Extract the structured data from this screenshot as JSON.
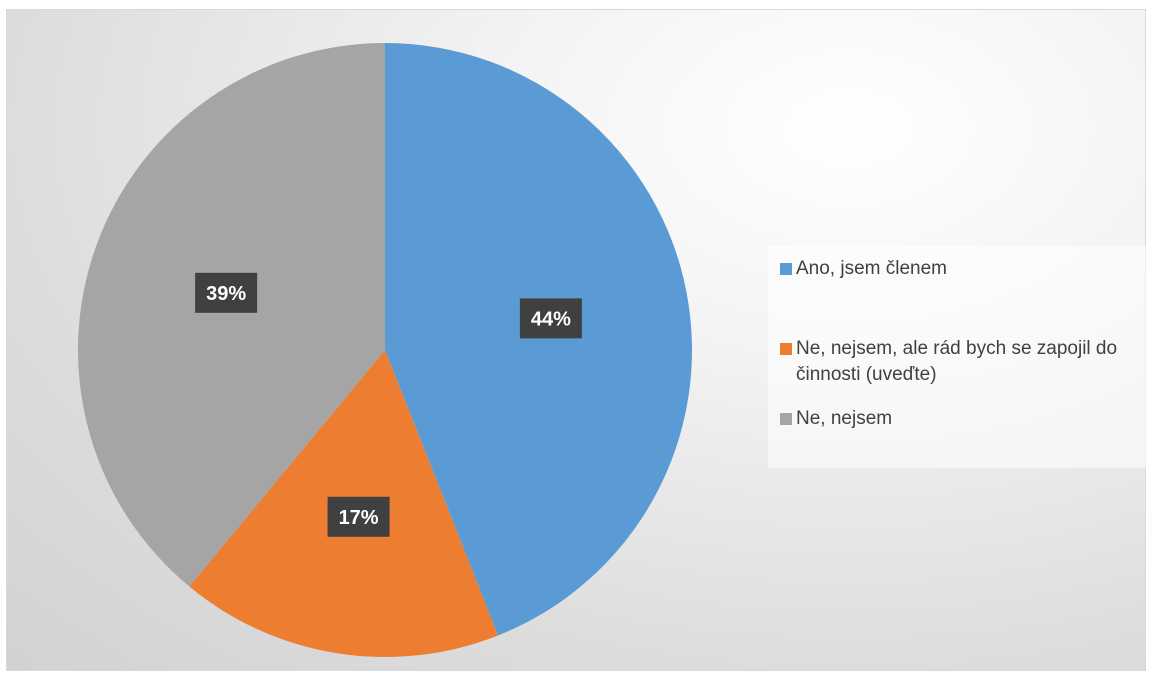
{
  "chart_data": {
    "type": "pie",
    "title": "",
    "slices": [
      {
        "label": "Ano, jsem členem",
        "value": 44,
        "display": "44%",
        "color": "#5B9BD5"
      },
      {
        "label": "Ne, nejsem, ale rád bych se zapojil do činnosti (uveďte)",
        "value": 17,
        "display": "17%",
        "color": "#ED7D31"
      },
      {
        "label": "Ne, nejsem",
        "value": 39,
        "display": "39%",
        "color": "#A5A5A5"
      }
    ],
    "start_angle_deg": 0,
    "direction": "clockwise",
    "legend_position": "right"
  }
}
